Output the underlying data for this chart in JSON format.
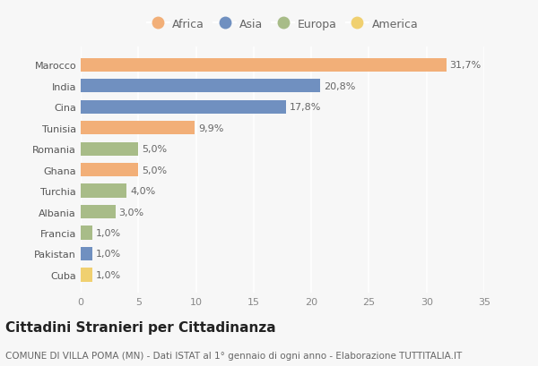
{
  "countries": [
    "Marocco",
    "India",
    "Cina",
    "Tunisia",
    "Romania",
    "Ghana",
    "Turchia",
    "Albania",
    "Francia",
    "Pakistan",
    "Cuba"
  ],
  "values": [
    31.7,
    20.8,
    17.8,
    9.9,
    5.0,
    5.0,
    4.0,
    3.0,
    1.0,
    1.0,
    1.0
  ],
  "labels": [
    "31,7%",
    "20,8%",
    "17,8%",
    "9,9%",
    "5,0%",
    "5,0%",
    "4,0%",
    "3,0%",
    "1,0%",
    "1,0%",
    "1,0%"
  ],
  "continents": [
    "Africa",
    "Asia",
    "Asia",
    "Africa",
    "Europa",
    "Africa",
    "Europa",
    "Europa",
    "Europa",
    "Asia",
    "America"
  ],
  "colors": {
    "Africa": "#F2AF78",
    "Asia": "#7090C0",
    "Europa": "#A8BC88",
    "America": "#F0D070"
  },
  "legend_order": [
    "Africa",
    "Asia",
    "Europa",
    "America"
  ],
  "xlim": [
    0,
    35
  ],
  "xticks": [
    0,
    5,
    10,
    15,
    20,
    25,
    30,
    35
  ],
  "title": "Cittadini Stranieri per Cittadinanza",
  "subtitle": "COMUNE DI VILLA POMA (MN) - Dati ISTAT al 1° gennaio di ogni anno - Elaborazione TUTTITALIA.IT",
  "bg_color": "#f7f7f7",
  "bar_height": 0.65,
  "label_fontsize": 8,
  "title_fontsize": 11,
  "subtitle_fontsize": 7.5,
  "tick_fontsize": 8,
  "legend_fontsize": 9
}
